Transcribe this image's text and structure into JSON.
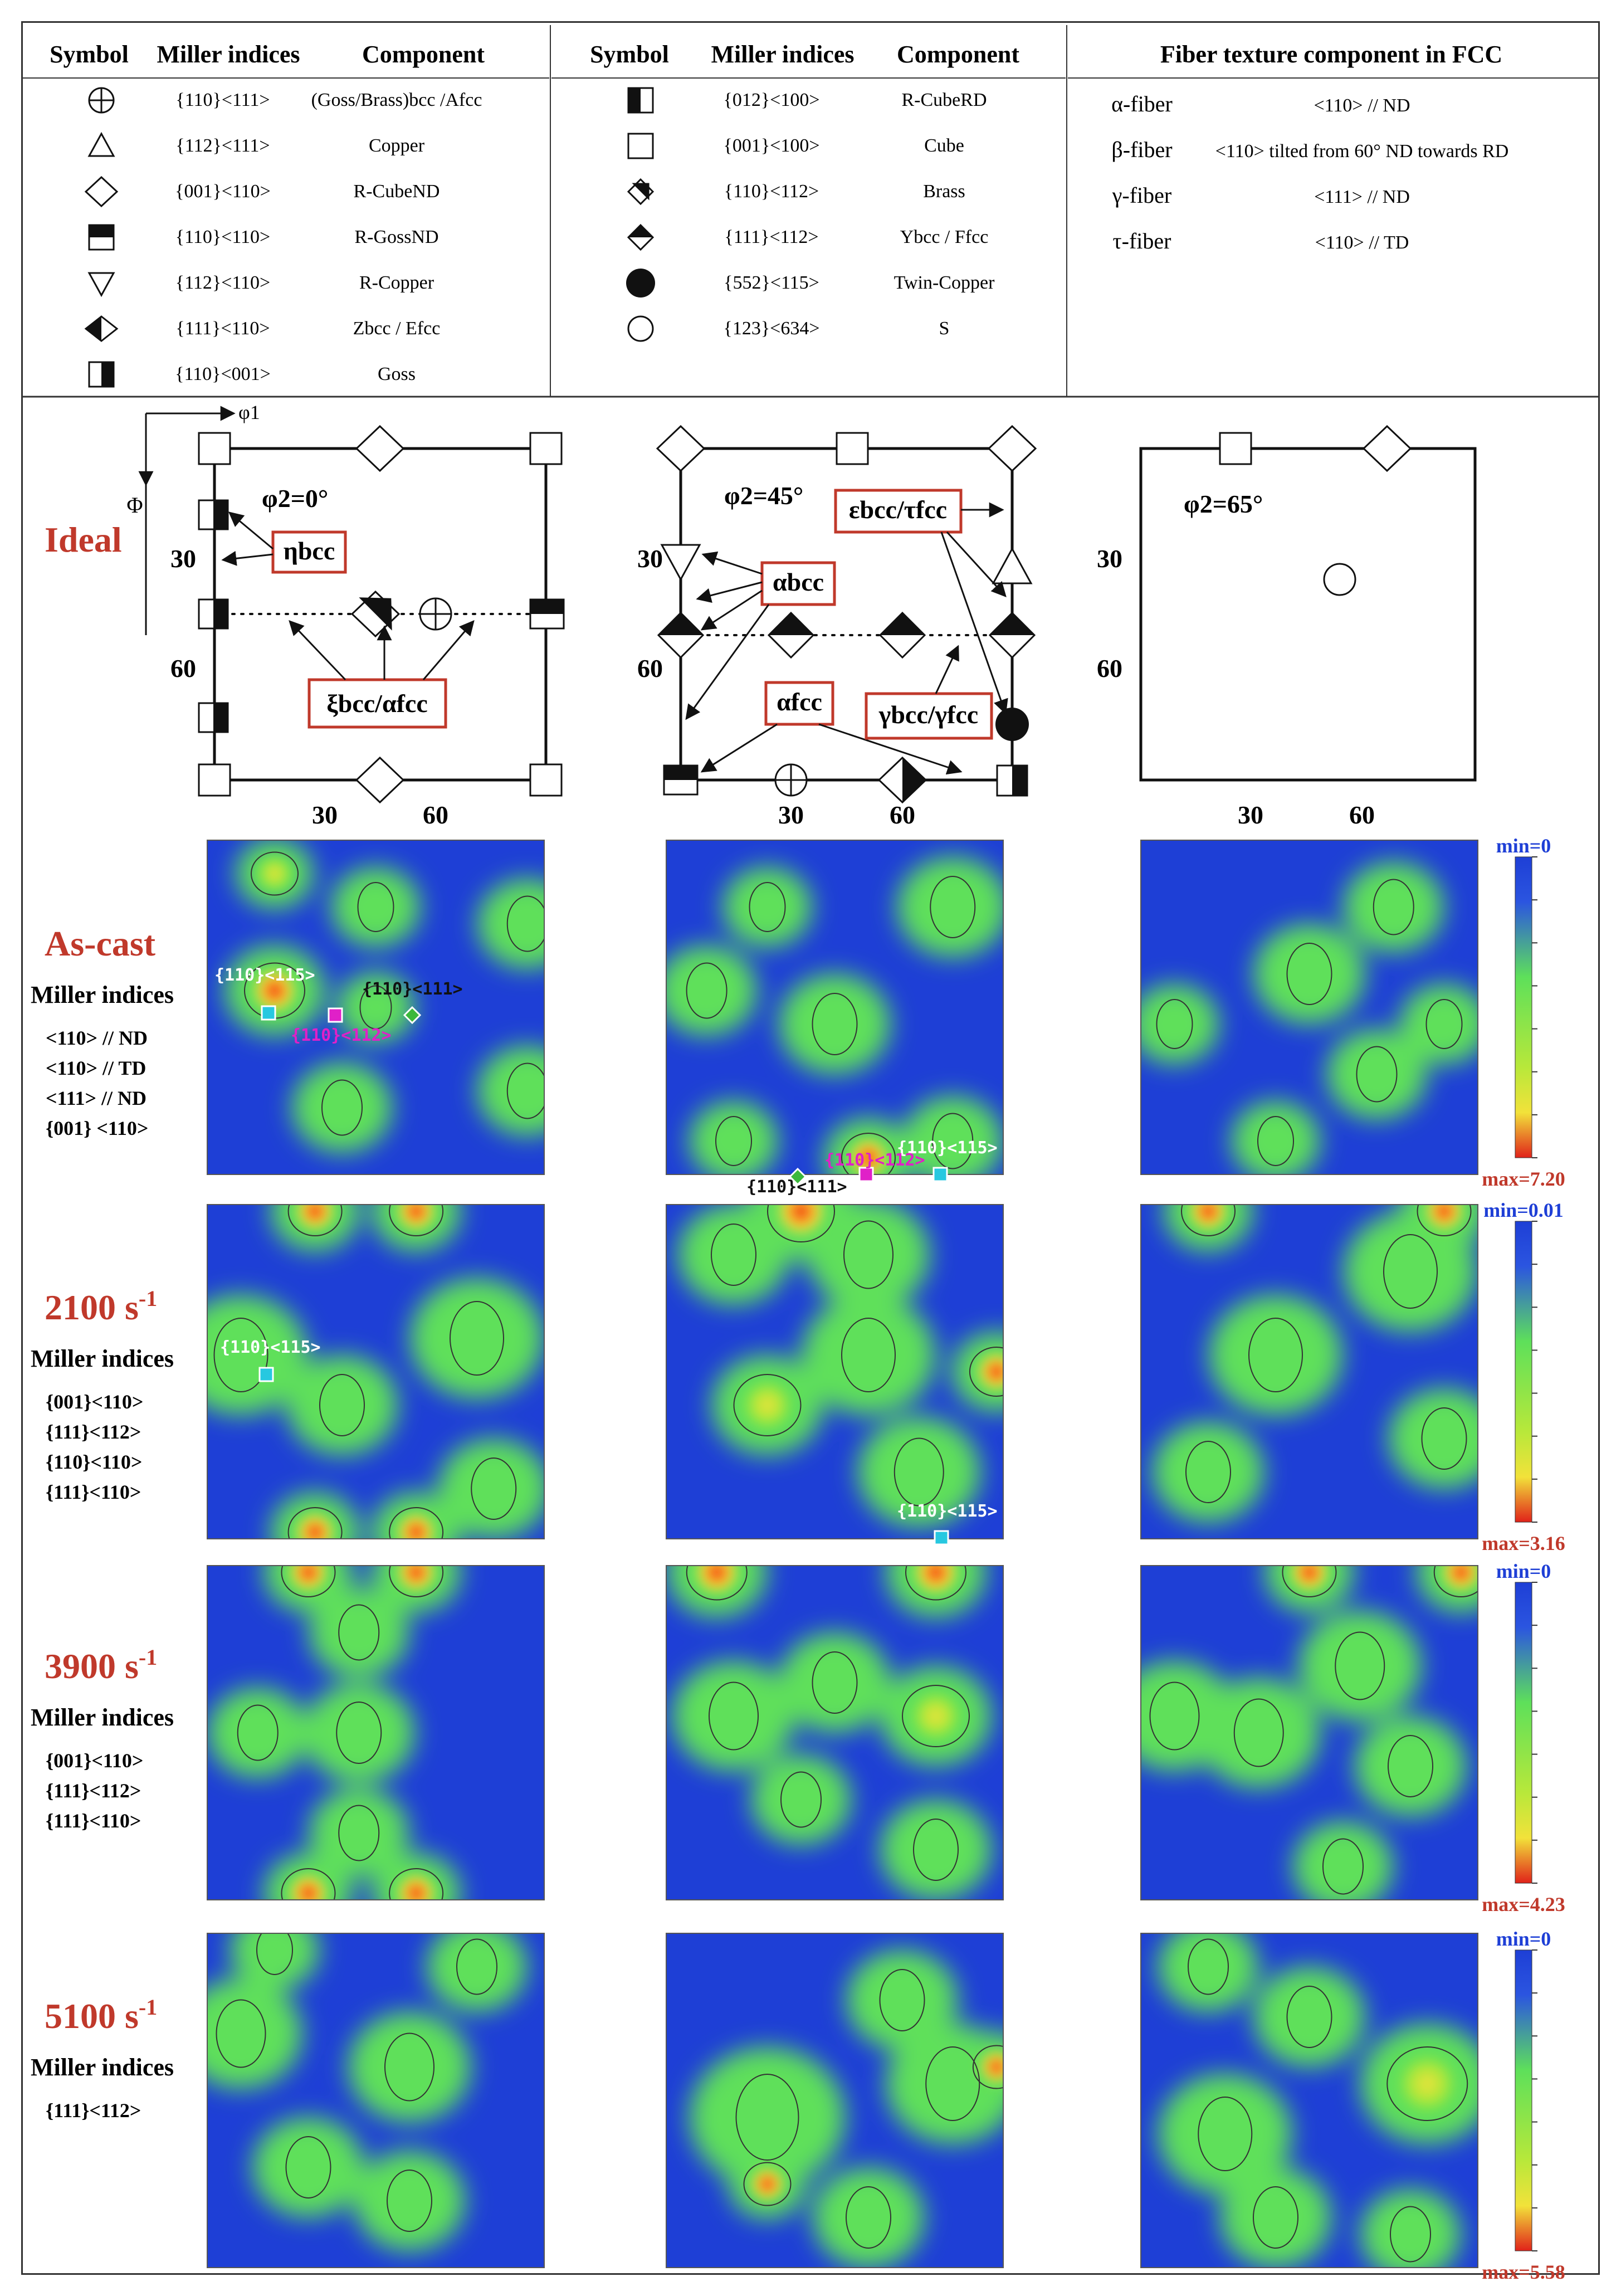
{
  "table": {
    "headers_left": [
      "Symbol",
      "Miller indices",
      "Component"
    ],
    "headers_mid": [
      "Symbol",
      "Miller indices",
      "Component"
    ],
    "header_right": "Fiber texture component in FCC",
    "left_rows": [
      {
        "symbol": "circle-plus",
        "miller": "{110}<111>",
        "component": "(Goss/Brass)bcc /Afcc"
      },
      {
        "symbol": "triangle-up",
        "miller": "{112}<111>",
        "component": "Copper"
      },
      {
        "symbol": "diamond",
        "miller": "{001}<110>",
        "component": "R-CubeND"
      },
      {
        "symbol": "square-top-half",
        "miller": "{110}<110>",
        "component": "R-GossND"
      },
      {
        "symbol": "triangle-down",
        "miller": "{112}<110>",
        "component": "R-Copper"
      },
      {
        "symbol": "diamond-left-half",
        "miller": "{111}<110>",
        "component": "Zbcc / Efcc"
      },
      {
        "symbol": "square-right-half",
        "miller": "{110}<001>",
        "component": "Goss"
      }
    ],
    "mid_rows": [
      {
        "symbol": "square-left-half",
        "miller": "{012}<100>",
        "component": "R-CubeRD"
      },
      {
        "symbol": "square",
        "miller": "{001}<100>",
        "component": "Cube"
      },
      {
        "symbol": "diamond-bottom-half",
        "miller": "{110}<112>",
        "component": "Brass"
      },
      {
        "symbol": "diamond-top-half",
        "miller": "{111}<112>",
        "component": "Ybcc / Ffcc"
      },
      {
        "symbol": "filled-circle",
        "miller": "{552}<115>",
        "component": "Twin-Copper"
      },
      {
        "symbol": "circle",
        "miller": "{123}<634>",
        "component": "S"
      }
    ],
    "fibers": [
      {
        "name": "α-fiber",
        "desc": "<110> // ND"
      },
      {
        "name": "β-fiber",
        "desc": "<110> tilted from 60° ND towards RD"
      },
      {
        "name": "γ-fiber",
        "desc": "<111> // ND"
      },
      {
        "name": "τ-fiber",
        "desc": "<110> // TD"
      }
    ]
  },
  "ideal": {
    "label": "Ideal",
    "axis_phi1": "φ1",
    "axis_Phi": "Φ",
    "tick_30": "30",
    "tick_60": "60",
    "sections": [
      "φ2=0°",
      "φ2=45°",
      "φ2=65°"
    ],
    "boxes": {
      "eta": "ηbcc",
      "xi": "ξbcc/αfcc",
      "alpha_bcc": "αbcc",
      "eps": "εbcc/τfcc",
      "alpha_fcc": "αfcc",
      "gamma": "γbcc/γfcc"
    }
  },
  "rows": [
    {
      "title": "As-cast",
      "mi_title": "Miller indices",
      "mi": [
        "<110> // ND",
        "<110> // TD",
        "<111> // ND",
        "{001} <110>"
      ],
      "min": "min=0",
      "max": "max=7.20"
    },
    {
      "title": "2100 s-1",
      "mi_title": "Miller indices",
      "mi": [
        "{001}<110>",
        "{111}<112>",
        "{110}<110>",
        "{111}<110>"
      ],
      "min": "min=0.01",
      "max": "max=3.16"
    },
    {
      "title": "3900 s-1",
      "mi_title": "Miller indices",
      "mi": [
        "{001}<110>",
        "{111}<112>",
        "{111}<110>"
      ],
      "min": "min=0",
      "max": "max=4.23"
    },
    {
      "title": "5100 s-1",
      "mi_title": "Miller indices",
      "mi": [
        "{111}<112>"
      ],
      "min": "min=0",
      "max": "max=5.58"
    }
  ],
  "annotations": {
    "a115": "{110}<115>",
    "a112": "{110}<112>",
    "a111": "{110}<111>"
  },
  "colors": {
    "blue": "#1e3fd6",
    "green": "#5ee05a",
    "yellow": "#f2e23a",
    "red": "#e0221a",
    "title_red": "#c0392b"
  }
}
